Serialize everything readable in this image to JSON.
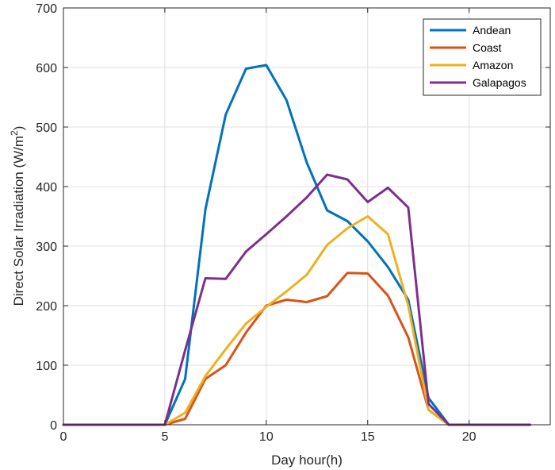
{
  "chart_data": {
    "type": "line",
    "title": "",
    "xlabel": "Day hour(h)",
    "ylabel_main": "Direct Solar Irradiation (W/m",
    "ylabel_sup": "2",
    "ylabel_close": ")",
    "xlim": [
      0,
      24
    ],
    "ylim": [
      0,
      700
    ],
    "xticks": [
      0,
      5,
      10,
      15,
      20
    ],
    "yticks": [
      0,
      100,
      200,
      300,
      400,
      500,
      600,
      700
    ],
    "grid": true,
    "legend_position": "top-right",
    "x": [
      0,
      1,
      2,
      3,
      4,
      5,
      6,
      7,
      8,
      9,
      10,
      11,
      12,
      13,
      14,
      15,
      16,
      17,
      18,
      19,
      20,
      21,
      22,
      23
    ],
    "series": [
      {
        "name": "Andean",
        "color": "#0072BD",
        "values": [
          0,
          0,
          0,
          0,
          0,
          0,
          77,
          362,
          521,
          598,
          604,
          545,
          440,
          360,
          342,
          308,
          265,
          210,
          45,
          0,
          0,
          0,
          0,
          0
        ]
      },
      {
        "name": "Coast",
        "color": "#D95319",
        "values": [
          0,
          0,
          0,
          0,
          0,
          0,
          10,
          77,
          100,
          155,
          200,
          210,
          206,
          216,
          255,
          254,
          217,
          147,
          25,
          0,
          0,
          0,
          0,
          0
        ]
      },
      {
        "name": "Amazon",
        "color": "#EDB120",
        "values": [
          0,
          0,
          0,
          0,
          0,
          0,
          20,
          82,
          127,
          170,
          198,
          224,
          252,
          302,
          330,
          350,
          320,
          200,
          25,
          0,
          0,
          0,
          0,
          0
        ]
      },
      {
        "name": "Galapagos",
        "color": "#7E2F8E",
        "values": [
          0,
          0,
          0,
          0,
          0,
          0,
          125,
          246,
          245,
          291,
          320,
          350,
          382,
          420,
          412,
          374,
          398,
          365,
          35,
          0,
          0,
          0,
          0,
          0
        ]
      }
    ]
  }
}
